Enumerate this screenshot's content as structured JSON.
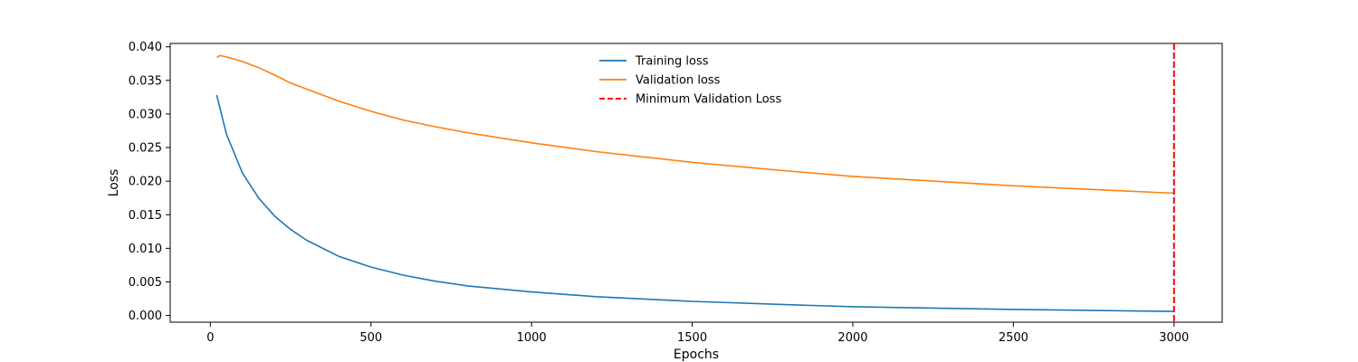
{
  "chart_data": {
    "type": "line",
    "title": "",
    "xlabel": "Epochs",
    "ylabel": "Loss",
    "xlim": [
      -125,
      3150
    ],
    "ylim": [
      -0.001,
      0.0405
    ],
    "xticks": [
      0,
      500,
      1000,
      1500,
      2000,
      2500,
      3000
    ],
    "xtick_labels": [
      "0",
      "500",
      "1000",
      "1500",
      "2000",
      "2500",
      "3000"
    ],
    "yticks": [
      0.0,
      0.005,
      0.01,
      0.015,
      0.02,
      0.025,
      0.03,
      0.035,
      0.04
    ],
    "ytick_labels": [
      "0.000",
      "0.005",
      "0.010",
      "0.015",
      "0.020",
      "0.025",
      "0.030",
      "0.035",
      "0.040"
    ],
    "grid": false,
    "legend_position": "top-center",
    "series": [
      {
        "name": "Training loss",
        "color": "#1f77b4",
        "style": "solid",
        "x": [
          20,
          50,
          100,
          150,
          200,
          250,
          300,
          400,
          500,
          600,
          700,
          800,
          1000,
          1200,
          1500,
          1800,
          2000,
          2500,
          3000
        ],
        "y": [
          0.0328,
          0.027,
          0.0212,
          0.0175,
          0.0148,
          0.0128,
          0.0112,
          0.0088,
          0.0072,
          0.006,
          0.0051,
          0.0044,
          0.0035,
          0.0028,
          0.0021,
          0.0016,
          0.0013,
          0.0009,
          0.0006
        ]
      },
      {
        "name": "Validation loss",
        "color": "#ff7f0e",
        "style": "solid",
        "x": [
          20,
          30,
          40,
          50,
          100,
          150,
          200,
          250,
          300,
          400,
          500,
          600,
          700,
          800,
          1000,
          1200,
          1500,
          1800,
          2000,
          2500,
          3000
        ],
        "y": [
          0.0384,
          0.0387,
          0.0386,
          0.0385,
          0.0378,
          0.0369,
          0.0358,
          0.0346,
          0.0337,
          0.0319,
          0.0304,
          0.0291,
          0.0281,
          0.0272,
          0.0257,
          0.0244,
          0.0228,
          0.0215,
          0.0207,
          0.0193,
          0.0182
        ]
      }
    ],
    "vlines": [
      {
        "name": "Minimum Validation Loss",
        "x": 3000,
        "color": "#ff0000",
        "style": "dashed"
      }
    ]
  }
}
